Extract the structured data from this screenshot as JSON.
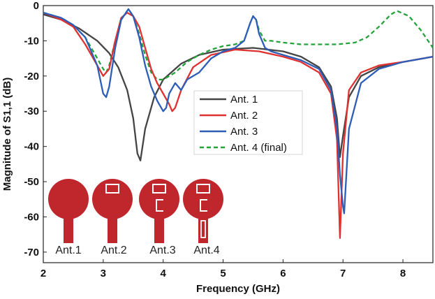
{
  "chart_data": {
    "type": "line",
    "xlabel": "Frequency (GHz)",
    "ylabel": "Magnitude of S1,1 (dB)",
    "xlim": [
      2,
      8.5
    ],
    "ylim": [
      -73,
      0
    ],
    "xticks": [
      2,
      3,
      4,
      5,
      6,
      7,
      8
    ],
    "yticks": [
      0,
      -10,
      -20,
      -30,
      -40,
      -50,
      -60,
      -70
    ],
    "legend_position": "center-right",
    "grid": false,
    "series": [
      {
        "name": "Ant. 1",
        "color": "#444444",
        "dash": "solid",
        "x": [
          2.0,
          2.3,
          2.6,
          2.9,
          3.1,
          3.25,
          3.4,
          3.5,
          3.57,
          3.62,
          3.7,
          3.85,
          4.0,
          4.3,
          4.6,
          5.0,
          5.5,
          6.0,
          6.3,
          6.6,
          6.8,
          6.9,
          6.95,
          7.0,
          7.1,
          7.3,
          7.6,
          8.0,
          8.5
        ],
        "y": [
          -2.5,
          -4,
          -6.5,
          -10,
          -13.5,
          -17.5,
          -24,
          -32,
          -42,
          -44,
          -35,
          -26,
          -21,
          -16.5,
          -14,
          -12.5,
          -12,
          -13,
          -14.5,
          -17.5,
          -23,
          -32,
          -43,
          -37,
          -26,
          -20,
          -17.5,
          -16,
          -14.5
        ]
      },
      {
        "name": "Ant. 2",
        "color": "#e03030",
        "dash": "solid",
        "x": [
          2.0,
          2.3,
          2.5,
          2.7,
          2.9,
          3.0,
          3.1,
          3.2,
          3.3,
          3.4,
          3.5,
          3.6,
          3.7,
          3.8,
          3.9,
          4.0,
          4.1,
          4.15,
          4.2,
          4.3,
          4.5,
          4.8,
          5.2,
          5.6,
          6.0,
          6.3,
          6.6,
          6.8,
          6.9,
          6.95,
          7.0,
          7.1,
          7.3,
          7.6,
          8.0,
          8.5
        ],
        "y": [
          -2,
          -4,
          -6,
          -11,
          -17,
          -20,
          -18,
          -10,
          -3.5,
          -2,
          -3,
          -6,
          -12,
          -18,
          -22,
          -25,
          -28,
          -30,
          -29,
          -24,
          -17.5,
          -14,
          -12.5,
          -13,
          -14.5,
          -16,
          -19,
          -25,
          -38,
          -66,
          -42,
          -24,
          -19,
          -17,
          -16,
          -14.5
        ]
      },
      {
        "name": "Ant. 3",
        "color": "#2e5db8",
        "dash": "solid",
        "x": [
          2.0,
          2.3,
          2.5,
          2.7,
          2.9,
          3.0,
          3.05,
          3.1,
          3.2,
          3.3,
          3.42,
          3.5,
          3.6,
          3.7,
          3.8,
          3.9,
          4.0,
          4.05,
          4.1,
          4.2,
          4.3,
          4.4,
          4.6,
          4.8,
          5.0,
          5.2,
          5.35,
          5.45,
          5.5,
          5.55,
          5.6,
          5.7,
          5.8,
          6.0,
          6.3,
          6.6,
          6.8,
          6.9,
          6.95,
          7.0,
          7.02,
          7.1,
          7.3,
          7.6,
          8.0,
          8.5
        ],
        "y": [
          -2,
          -3.5,
          -5.5,
          -9,
          -17,
          -25,
          -26,
          -23,
          -12,
          -4,
          -1,
          -3,
          -9,
          -17,
          -23,
          -27,
          -30,
          -29,
          -25,
          -22,
          -24,
          -21,
          -19,
          -15,
          -13,
          -12,
          -10,
          -5,
          -3,
          -4,
          -8,
          -12,
          -13,
          -14,
          -15.5,
          -18,
          -24,
          -35,
          -48,
          -57,
          -59,
          -35,
          -22,
          -18,
          -16,
          -14.5
        ]
      },
      {
        "name": "Ant. 4 (final)",
        "color": "#22a43a",
        "dash": "dashed",
        "x": [
          2.0,
          2.3,
          2.5,
          2.7,
          2.9,
          3.0,
          3.05,
          3.1,
          3.2,
          3.3,
          3.42,
          3.5,
          3.6,
          3.7,
          3.8,
          3.9,
          4.0,
          4.2,
          4.4,
          4.6,
          4.8,
          5.0,
          5.2,
          5.35,
          5.45,
          5.5,
          5.55,
          5.6,
          5.7,
          5.8,
          6.0,
          6.3,
          6.6,
          6.9,
          7.2,
          7.4,
          7.6,
          7.8,
          7.9,
          8.1,
          8.3,
          8.5
        ],
        "y": [
          -2,
          -3.5,
          -5.5,
          -9,
          -15,
          -18,
          -19,
          -17,
          -10,
          -4,
          -1,
          -3,
          -8,
          -14,
          -19,
          -21,
          -21,
          -19,
          -16,
          -14,
          -12.5,
          -11.5,
          -11,
          -10,
          -5,
          -3,
          -4,
          -7,
          -10,
          -10,
          -10.5,
          -11,
          -11,
          -11,
          -10.5,
          -9,
          -6,
          -2.5,
          -1.5,
          -3,
          -7,
          -12
        ]
      }
    ],
    "antenna_labels": [
      "Ant.1",
      "Ant.2",
      "Ant.3",
      "Ant.4"
    ]
  }
}
